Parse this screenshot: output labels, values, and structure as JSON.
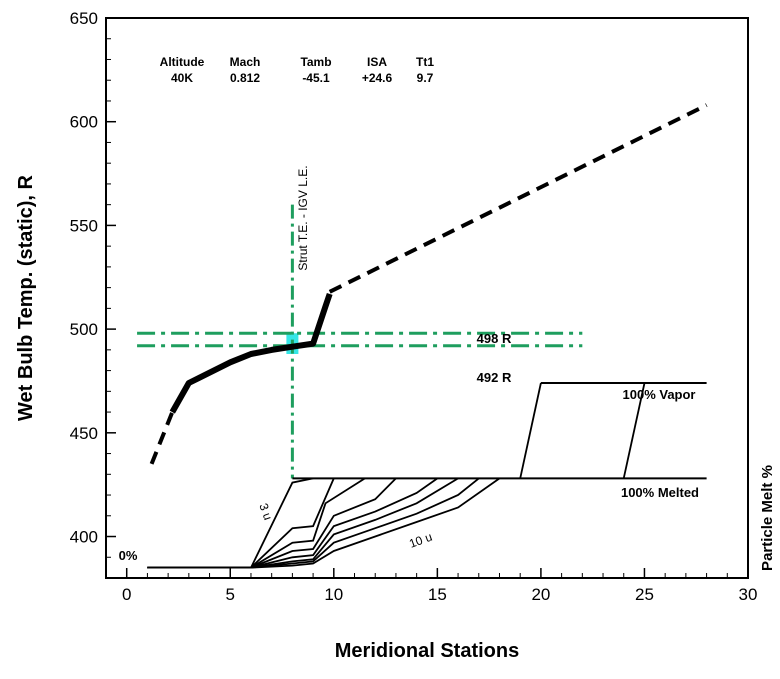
{
  "chart_data": {
    "type": "line",
    "xlabel": "Meridional Stations",
    "ylabel": "Wet Bulb Temp. (static), R",
    "y2label": "Particle Melt %",
    "xlim": [
      -1,
      30
    ],
    "ylim": [
      380,
      650
    ],
    "x_ticks": [
      "0",
      "5",
      "10",
      "15",
      "20",
      "25",
      "30"
    ],
    "y_ticks": [
      "400",
      "450",
      "500",
      "550",
      "600",
      "650"
    ],
    "grid": false,
    "info_table": {
      "headers": [
        "Altitude",
        "Mach",
        "Tamb",
        "ISA",
        "Tt1"
      ],
      "values": [
        "40K",
        "0.812",
        "-45.1",
        "+24.6",
        "9.7"
      ]
    },
    "annotations": {
      "strut_label": "Strut T.E. - IGV L.E.",
      "upper_line_label": "498 R",
      "lower_line_label": "492 R",
      "vapor_label": "100% Vapor",
      "melted_label": "100% Melted",
      "zero_label": "0%",
      "small_particle_label": "3 u",
      "large_particle_label": "10 u"
    },
    "reference_lines": {
      "strut_station": 8,
      "strut_y_range": [
        428,
        560
      ],
      "upper_temp": 498,
      "lower_temp": 492,
      "temp_line_x_range": [
        0.5,
        22
      ]
    },
    "series": [
      {
        "style": "dashed",
        "values": [
          [
            1.2,
            435
          ],
          [
            2.2,
            460
          ]
        ]
      },
      {
        "style": "solid-thick",
        "values": [
          [
            2.2,
            460
          ],
          [
            3.0,
            474
          ],
          [
            4.0,
            479
          ],
          [
            5.0,
            484
          ],
          [
            6.0,
            488
          ],
          [
            7.0,
            490
          ],
          [
            8.0,
            491.5
          ],
          [
            9.0,
            493
          ],
          [
            9.6,
            511
          ],
          [
            9.8,
            517
          ]
        ]
      },
      {
        "style": "dashed",
        "values": [
          [
            9.8,
            518
          ],
          [
            28,
            608
          ]
        ]
      },
      {
        "style": "solid",
        "name": "100% Vapor",
        "values": [
          [
            20,
            474
          ],
          [
            28,
            474
          ]
        ]
      },
      {
        "style": "solid",
        "name": "100% Melted",
        "values": [
          [
            8,
            428
          ],
          [
            28,
            428
          ]
        ]
      }
    ],
    "melt_curves": [
      [
        [
          1,
          385
        ],
        [
          6,
          385
        ],
        [
          8,
          426
        ],
        [
          9,
          428
        ]
      ],
      [
        [
          1,
          385
        ],
        [
          6,
          385
        ],
        [
          8,
          404
        ],
        [
          9,
          405
        ],
        [
          10,
          428
        ]
      ],
      [
        [
          1,
          385
        ],
        [
          6,
          385
        ],
        [
          8,
          397
        ],
        [
          9,
          398
        ],
        [
          9.6,
          416
        ],
        [
          11.5,
          428
        ]
      ],
      [
        [
          1,
          385
        ],
        [
          6,
          385
        ],
        [
          8,
          393
        ],
        [
          9,
          394
        ],
        [
          10,
          410
        ],
        [
          12,
          418
        ],
        [
          13,
          428
        ]
      ],
      [
        [
          1,
          385
        ],
        [
          6,
          385
        ],
        [
          8,
          390
        ],
        [
          9,
          391
        ],
        [
          10,
          405
        ],
        [
          12,
          412
        ],
        [
          14,
          421
        ],
        [
          15,
          428
        ]
      ],
      [
        [
          1,
          385
        ],
        [
          6,
          385
        ],
        [
          8,
          388
        ],
        [
          9,
          389
        ],
        [
          10,
          401
        ],
        [
          12,
          408
        ],
        [
          14,
          416
        ],
        [
          16,
          428
        ]
      ],
      [
        [
          1,
          385
        ],
        [
          6,
          385
        ],
        [
          8,
          387
        ],
        [
          9,
          388
        ],
        [
          10,
          397
        ],
        [
          12,
          404
        ],
        [
          14,
          411
        ],
        [
          16,
          420
        ],
        [
          17,
          428
        ]
      ],
      [
        [
          1,
          385
        ],
        [
          6,
          385
        ],
        [
          8,
          386
        ],
        [
          9,
          387
        ],
        [
          10,
          393
        ],
        [
          12,
          400
        ],
        [
          14,
          407
        ],
        [
          16,
          414
        ],
        [
          18,
          428
        ]
      ]
    ],
    "vapor_transitions": [
      [
        [
          19,
          428
        ],
        [
          20,
          474
        ]
      ],
      [
        [
          24,
          428
        ],
        [
          25,
          474
        ]
      ]
    ],
    "colors": {
      "reference": "#1e9e5e",
      "highlight": "#35e6e6",
      "line": "#000000"
    }
  }
}
